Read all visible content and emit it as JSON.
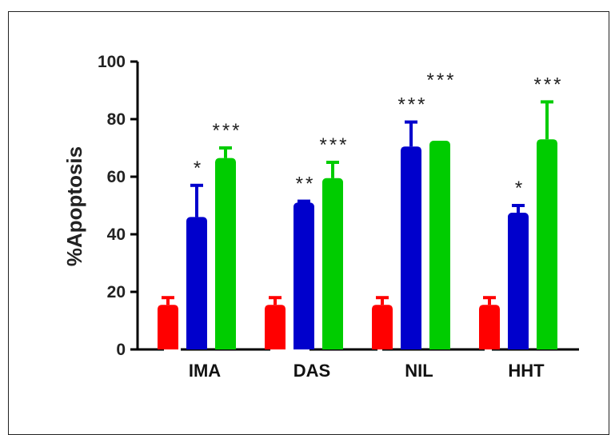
{
  "chart_data": {
    "type": "bar",
    "title": "",
    "xlabel": "",
    "ylabel": "%Apoptosis",
    "ylim": [
      0,
      100
    ],
    "yticks": [
      "0",
      "20",
      "40",
      "60",
      "80",
      "100"
    ],
    "grid": false,
    "categories": [
      "IMA",
      "DAS",
      "NIL",
      "HHT"
    ],
    "series": [
      {
        "color": "#ff0000",
        "values": [
          15.5,
          15.5,
          15.5,
          15.5
        ],
        "errors": [
          2.5,
          2.5,
          2.5,
          2.5
        ]
      },
      {
        "color": "#0000cc",
        "values": [
          46,
          51,
          70.5,
          47.5
        ],
        "errors": [
          11,
          0.5,
          8.5,
          2.5
        ]
      },
      {
        "color": "#00cc00",
        "values": [
          66.5,
          59.5,
          72.5,
          73
        ],
        "errors": [
          3.5,
          5.5,
          0,
          13
        ]
      }
    ],
    "annotations": [
      [
        "",
        "*",
        "***"
      ],
      [
        "",
        "**",
        "***"
      ],
      [
        "",
        "***",
        "***"
      ],
      [
        "",
        "*",
        "***"
      ]
    ]
  }
}
